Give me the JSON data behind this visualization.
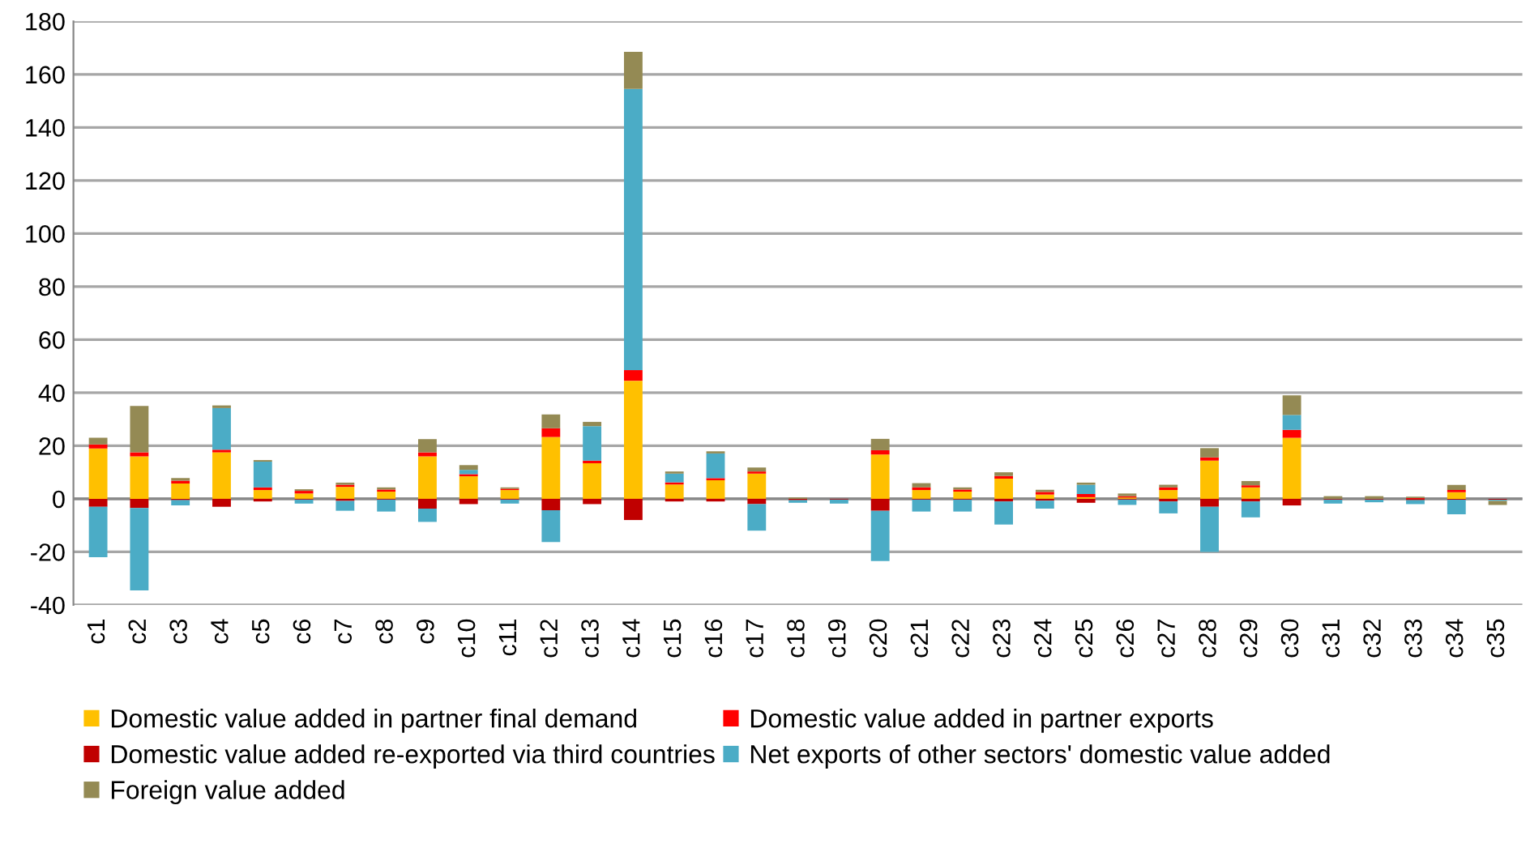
{
  "chart_data": {
    "type": "bar",
    "stacked": true,
    "categories": [
      "c1",
      "c2",
      "c3",
      "c4",
      "c5",
      "c6",
      "c7",
      "c8",
      "c9",
      "c10",
      "c11",
      "c12",
      "c13",
      "c14",
      "c15",
      "c16",
      "c17",
      "c18",
      "c19",
      "c20",
      "c21",
      "c22",
      "c23",
      "c24",
      "c25",
      "c26",
      "c27",
      "c28",
      "c29",
      "c30",
      "c31",
      "c32",
      "c33",
      "c34",
      "c35"
    ],
    "ylim": [
      -40,
      180
    ],
    "yticks": [
      -40,
      -20,
      0,
      20,
      40,
      60,
      80,
      100,
      120,
      140,
      160,
      180
    ],
    "grid": "y",
    "legend": "bottom",
    "series": [
      {
        "name": "Domestic value added in partner final demand",
        "color": "#ffc000",
        "values": [
          19,
          16,
          5.8,
          17.5,
          3.3,
          2,
          4.5,
          2.7,
          16,
          8.5,
          3.3,
          23.3,
          13.4,
          44.5,
          5.4,
          7,
          9.5,
          null,
          null,
          16.7,
          3.3,
          2.7,
          7.6,
          1.6,
          0.6,
          0.5,
          3.3,
          14.4,
          4.3,
          23,
          null,
          null,
          null,
          2.5,
          null
        ]
      },
      {
        "name": "Domestic value added in partner exports",
        "color": "#ff0000",
        "values": [
          1.5,
          1.5,
          1,
          1,
          1,
          1,
          0.8,
          0.8,
          1.5,
          0.8,
          0.5,
          3.3,
          1,
          4,
          0.8,
          0.8,
          0.8,
          null,
          null,
          1.6,
          1,
          0.8,
          1,
          1,
          1.2,
          0.5,
          1,
          1.2,
          0.8,
          3,
          null,
          null,
          0.3,
          0.8,
          null
        ]
      },
      {
        "name": "Domestic value added re-exported via third countries",
        "color": "#c00000",
        "values": [
          -3,
          -3.5,
          -0.5,
          -3,
          -1,
          -0.3,
          -0.8,
          -0.3,
          -3.7,
          -2,
          -0.3,
          -4.3,
          -2,
          -8,
          -1,
          -1,
          -2,
          -0.5,
          -0.3,
          -4.5,
          -0.3,
          -0.3,
          -1,
          -0.7,
          -1.5,
          -0.3,
          -1,
          -3,
          -1,
          -2.5,
          -0.3,
          -0.3,
          -0.5,
          -0.3,
          -0.3
        ]
      },
      {
        "name": "Net exports of other sectors' domestic value added",
        "color": "#4bacc6",
        "values": [
          -19,
          -31,
          -2,
          15.7,
          9.7,
          -1.5,
          -3.7,
          -4.5,
          -5,
          1.6,
          -1.5,
          -12,
          13,
          106,
          3.3,
          9.3,
          -10,
          -1,
          -1.5,
          -19,
          -4.5,
          -4.5,
          -8.7,
          -3,
          3.5,
          -2,
          -4.5,
          -17,
          -6,
          5.6,
          -1.5,
          -1,
          -1.5,
          -5.5,
          -0.5
        ]
      },
      {
        "name": "Foreign value added",
        "color": "#948a54",
        "values": [
          2.5,
          17.5,
          1,
          1,
          0.6,
          0.6,
          0.8,
          0.8,
          5,
          1.8,
          0.5,
          5.2,
          1.6,
          14,
          0.8,
          0.8,
          1.5,
          0.5,
          null,
          4.3,
          1.6,
          0.8,
          1.4,
          0.8,
          0.8,
          1,
          1,
          3.5,
          1.6,
          7.4,
          1,
          1,
          0.5,
          1.9,
          -1.5
        ]
      }
    ]
  }
}
